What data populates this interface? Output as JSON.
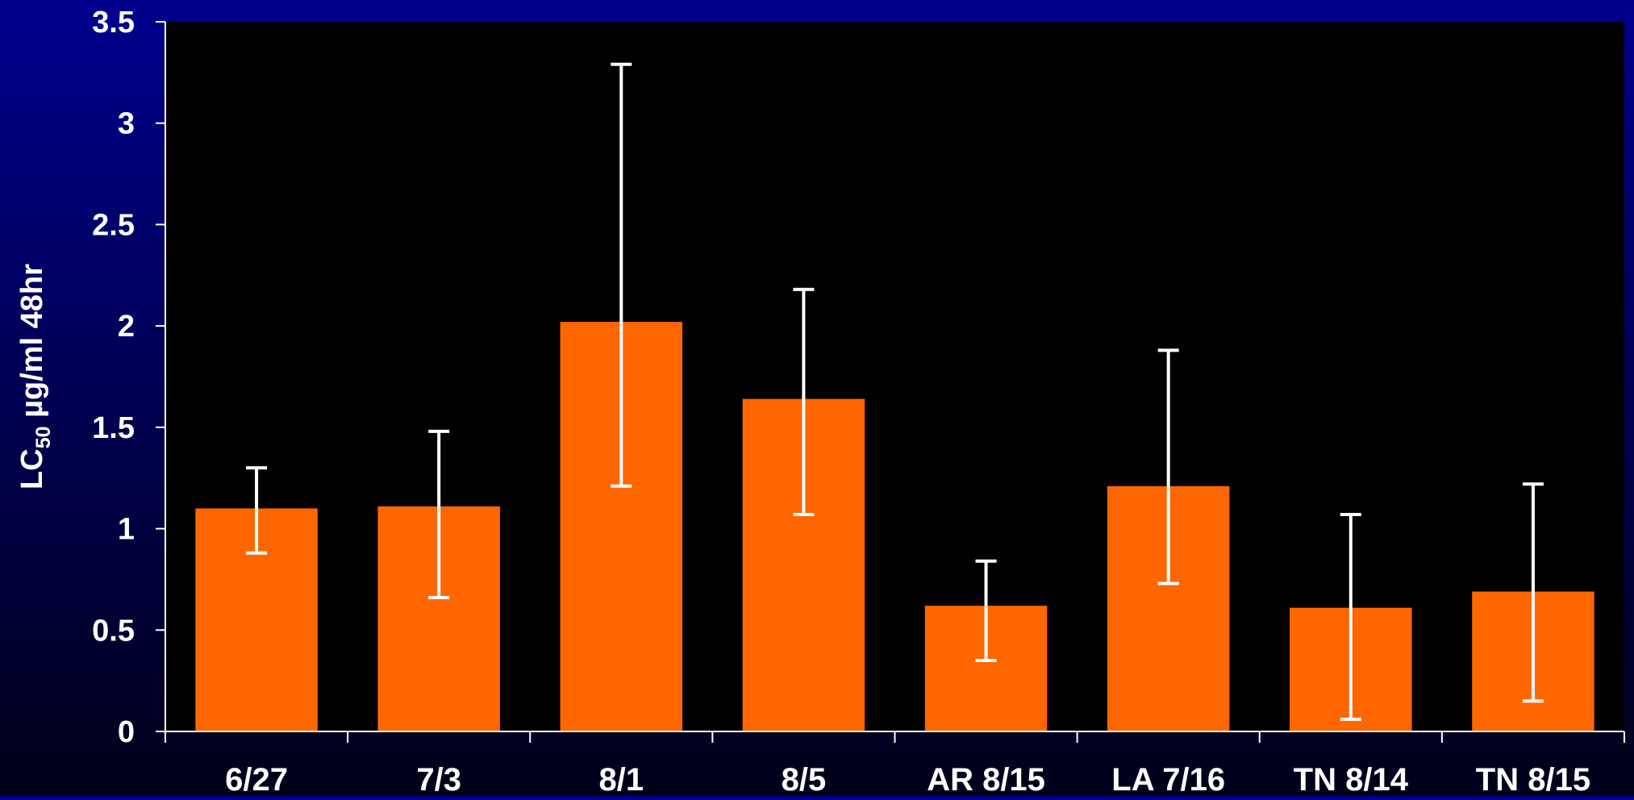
{
  "chart_data": {
    "type": "bar",
    "title": "",
    "xlabel": "",
    "ylabel_main": "LC",
    "ylabel_sub": "50",
    "ylabel_rest": " µg/ml 48hr",
    "categories": [
      "6/27",
      "7/3",
      "8/1",
      "8/5",
      "AR 8/15",
      "LA 7/16",
      "TN 8/14",
      "TN 8/15"
    ],
    "values": [
      1.1,
      1.11,
      2.02,
      1.64,
      0.62,
      1.21,
      0.61,
      0.69
    ],
    "error_low": [
      0.88,
      0.66,
      1.21,
      1.07,
      0.35,
      0.73,
      0.06,
      0.15
    ],
    "error_high": [
      1.3,
      1.48,
      3.29,
      2.18,
      0.84,
      1.88,
      1.07,
      1.22
    ],
    "ylim": [
      0,
      3.5
    ],
    "yticks": [
      "0",
      "0.5",
      "1",
      "1.5",
      "2",
      "2.5",
      "3",
      "3.5"
    ],
    "grid": false,
    "colors": {
      "bar": "#ff6600",
      "plot_background": "#000000",
      "axis": "#ffffff",
      "error_bar": "#ffffff"
    }
  }
}
